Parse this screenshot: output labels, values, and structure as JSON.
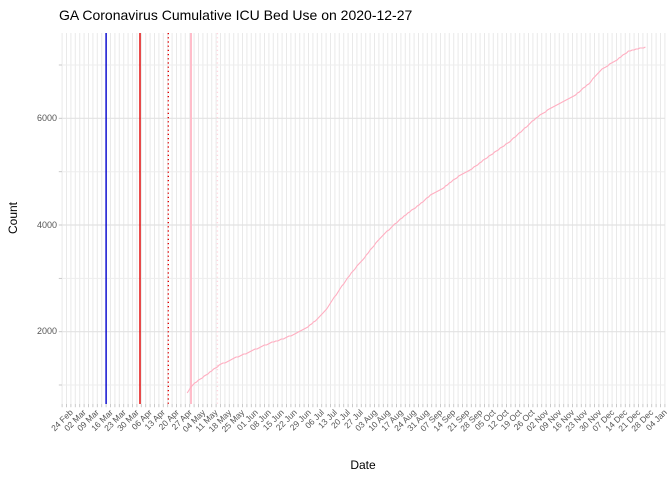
{
  "chart_data": {
    "type": "line",
    "title": "GA Coronavirus Cumulative ICU Bed Use on 2020-12-27",
    "xlabel": "Date",
    "ylabel": "Count",
    "grid": true,
    "legend": "none",
    "x_tick_labels": [
      "24 Feb",
      "02 Mar",
      "09 Mar",
      "16 Mar",
      "23 Mar",
      "30 Mar",
      "06 Apr",
      "13 Apr",
      "20 Apr",
      "27 Apr",
      "04 May",
      "11 May",
      "18 May",
      "25 May",
      "01 Jun",
      "08 Jun",
      "15 Jun",
      "22 Jun",
      "29 Jun",
      "06 Jul",
      "13 Jul",
      "20 Jul",
      "27 Jul",
      "03 Aug",
      "10 Aug",
      "17 Aug",
      "24 Aug",
      "31 Aug",
      "07 Sep",
      "14 Sep",
      "21 Sep",
      "28 Sep",
      "05 Oct",
      "12 Oct",
      "19 Oct",
      "26 Oct",
      "02 Nov",
      "09 Nov",
      "16 Nov",
      "23 Nov",
      "30 Nov",
      "07 Dec",
      "14 Dec",
      "21 Dec",
      "28 Dec",
      "04 Jan"
    ],
    "y_major": [
      2000,
      4000,
      6000
    ],
    "y_minor": [
      1000,
      3000,
      5000,
      7000
    ],
    "y_tick_labels": [
      "2000",
      "4000",
      "6000"
    ],
    "ylim": [
      550,
      7620
    ],
    "x_range": [
      "2020-02-24",
      "2021-01-04"
    ],
    "colors": {
      "line": "#ffaec1",
      "grid_major": "#e2e2e2",
      "grid_minor": "#ededed",
      "grid_vertical": "#e9e9e9",
      "tick_mark": "#c4c4c4",
      "vline_blue": "#0000cd",
      "vline_red": "#e00000",
      "vline_pink": "#ffbdca",
      "vline_pink_light": "#ffd6de"
    },
    "vlines": [
      {
        "name": "blue-solid-marker",
        "date": "2020-03-16",
        "color": "#0000cd",
        "style": "solid",
        "width": 1.4
      },
      {
        "name": "red-solid-marker",
        "date": "2020-04-03",
        "color": "#e00000",
        "style": "solid",
        "width": 1.4
      },
      {
        "name": "red-dotted-marker",
        "date": "2020-04-18",
        "color": "#e00000",
        "style": "dotted",
        "width": 1.4
      },
      {
        "name": "pink-solid-marker",
        "date": "2020-04-30",
        "color": "#ffbdca",
        "style": "solid",
        "width": 2
      },
      {
        "name": "pink-dotted-marker",
        "date": "2020-05-14",
        "color": "#ffd6de",
        "style": "dotted",
        "width": 1.4
      }
    ],
    "series": [
      {
        "name": "cumulative-icu-bed-use",
        "color": "#ffaec1",
        "points": [
          [
            "2020-04-28",
            850
          ],
          [
            "2020-05-01",
            1010
          ],
          [
            "2020-05-08",
            1190
          ],
          [
            "2020-05-15",
            1370
          ],
          [
            "2020-05-22",
            1490
          ],
          [
            "2020-05-29",
            1590
          ],
          [
            "2020-06-05",
            1700
          ],
          [
            "2020-06-12",
            1800
          ],
          [
            "2020-06-19",
            1880
          ],
          [
            "2020-06-26",
            1990
          ],
          [
            "2020-07-03",
            2140
          ],
          [
            "2020-07-10",
            2380
          ],
          [
            "2020-07-17",
            2750
          ],
          [
            "2020-07-24",
            3100
          ],
          [
            "2020-07-31",
            3390
          ],
          [
            "2020-08-07",
            3700
          ],
          [
            "2020-08-14",
            3950
          ],
          [
            "2020-08-21",
            4170
          ],
          [
            "2020-08-28",
            4350
          ],
          [
            "2020-09-04",
            4560
          ],
          [
            "2020-09-11",
            4700
          ],
          [
            "2020-09-18",
            4890
          ],
          [
            "2020-09-25",
            5030
          ],
          [
            "2020-10-02",
            5210
          ],
          [
            "2020-10-09",
            5390
          ],
          [
            "2020-10-16",
            5560
          ],
          [
            "2020-10-23",
            5780
          ],
          [
            "2020-10-30",
            6010
          ],
          [
            "2020-11-06",
            6170
          ],
          [
            "2020-11-13",
            6310
          ],
          [
            "2020-11-20",
            6440
          ],
          [
            "2020-11-27",
            6650
          ],
          [
            "2020-12-04",
            6930
          ],
          [
            "2020-12-11",
            7070
          ],
          [
            "2020-12-18",
            7260
          ],
          [
            "2020-12-24",
            7310
          ],
          [
            "2020-12-27",
            7330
          ]
        ]
      }
    ]
  }
}
